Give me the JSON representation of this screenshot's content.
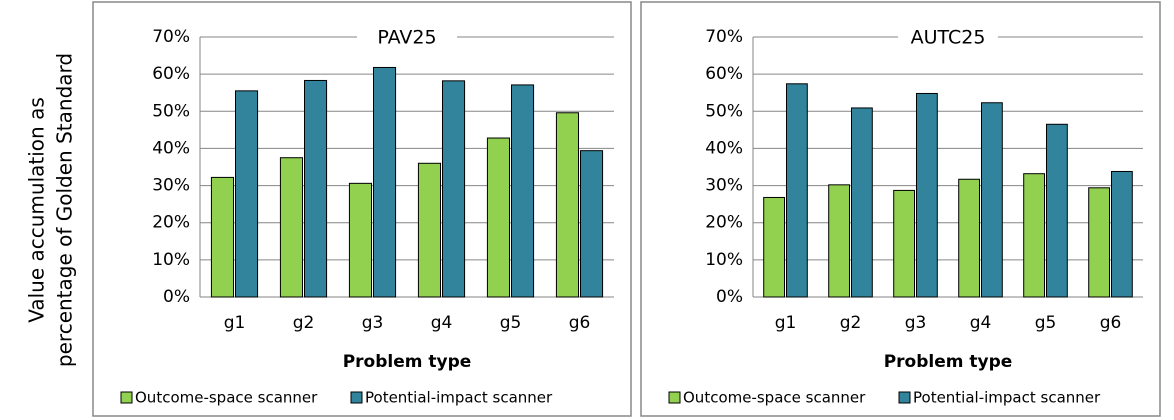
{
  "y_label": [
    "Value accumulation as",
    "percentage of Golden Standard"
  ],
  "chart_data": [
    {
      "type": "bar",
      "title": "PAV25",
      "x_label": "Problem type",
      "categories": [
        "g1",
        "g2",
        "g3",
        "g4",
        "g5",
        "g6"
      ],
      "series": [
        {
          "name": "Outcome-space scanner",
          "color": "#92d050",
          "values": [
            32.2,
            37.5,
            30.6,
            36.0,
            42.8,
            49.6
          ]
        },
        {
          "name": "Potential-impact scanner",
          "color": "#31849b",
          "values": [
            55.5,
            58.3,
            61.8,
            58.2,
            57.1,
            39.4
          ]
        }
      ],
      "ylim": [
        0,
        70
      ],
      "yticks": [
        {
          "value": 0,
          "label": "0%"
        },
        {
          "value": 10,
          "label": "10%"
        },
        {
          "value": 20,
          "label": "20%"
        },
        {
          "value": 30,
          "label": "30%"
        },
        {
          "value": 40,
          "label": "40%"
        },
        {
          "value": 50,
          "label": "50%"
        },
        {
          "value": 60,
          "label": "60%"
        },
        {
          "value": 70,
          "label": "70%"
        }
      ],
      "grid": true,
      "legend": "bottom"
    },
    {
      "type": "bar",
      "title": "AUTC25",
      "x_label": "Problem type",
      "categories": [
        "g1",
        "g2",
        "g3",
        "g4",
        "g5",
        "g6"
      ],
      "series": [
        {
          "name": "Outcome-space scanner",
          "color": "#92d050",
          "values": [
            26.8,
            30.2,
            28.7,
            31.7,
            33.2,
            29.4
          ]
        },
        {
          "name": "Potential-impact scanner",
          "color": "#31849b",
          "values": [
            57.4,
            50.9,
            54.8,
            52.3,
            46.5,
            33.8
          ]
        }
      ],
      "ylim": [
        0,
        70
      ],
      "yticks": [
        {
          "value": 0,
          "label": "0%"
        },
        {
          "value": 10,
          "label": "10%"
        },
        {
          "value": 20,
          "label": "20%"
        },
        {
          "value": 30,
          "label": "30%"
        },
        {
          "value": 40,
          "label": "40%"
        },
        {
          "value": 50,
          "label": "50%"
        },
        {
          "value": 60,
          "label": "60%"
        },
        {
          "value": 70,
          "label": "70%"
        }
      ],
      "grid": true,
      "legend": "bottom"
    }
  ]
}
